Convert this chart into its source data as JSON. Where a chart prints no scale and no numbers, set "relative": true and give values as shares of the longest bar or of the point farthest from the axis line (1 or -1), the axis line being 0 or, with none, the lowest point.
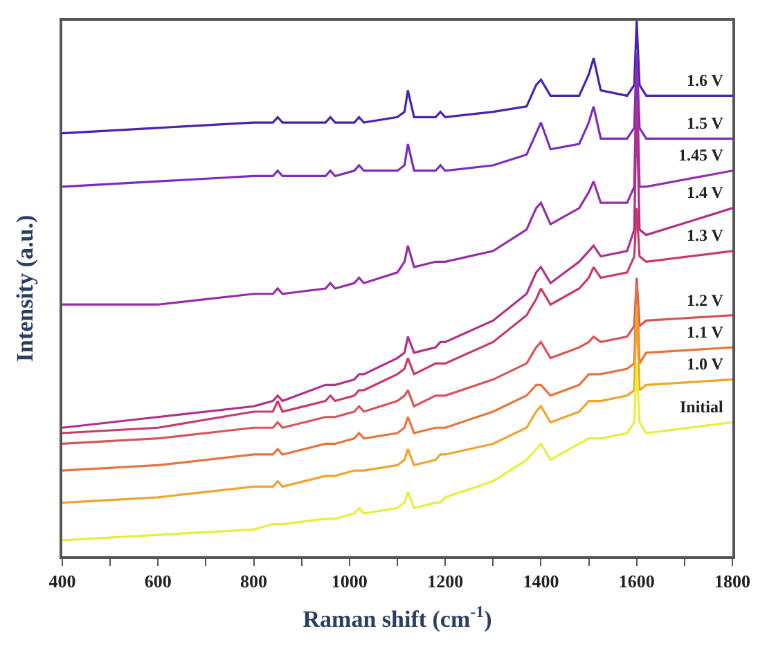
{
  "chart_data": {
    "type": "line",
    "relative": true,
    "xlabel": "Raman shift (cm$^{-1}$)",
    "ylabel": "Intensity (a.u.)",
    "xlim": [
      400,
      1800
    ],
    "xticks": [
      400,
      {
        "value": 500,
        "label": null
      },
      600,
      {
        "value": 700,
        "label": null
      },
      800,
      {
        "value": 900,
        "label": null
      },
      1000,
      {
        "value": 1100,
        "label": null
      },
      1200,
      {
        "value": 1300,
        "label": null
      },
      1400,
      {
        "value": 1500,
        "label": null
      },
      1600,
      {
        "value": 1700,
        "label": null
      },
      1800
    ],
    "legend": false,
    "marker": "none",
    "line_style": "solid",
    "x": [
      400,
      600,
      800,
      840,
      850,
      860,
      950,
      960,
      970,
      1010,
      1020,
      1030,
      1100,
      1115,
      1122,
      1135,
      1180,
      1190,
      1200,
      1300,
      1370,
      1390,
      1400,
      1420,
      1480,
      1500,
      1510,
      1525,
      1580,
      1595,
      1600,
      1606,
      1620,
      1800
    ],
    "series": [
      {
        "name": "1.6 V",
        "color": "#4a22b0",
        "values": [
          0.79,
          0.8,
          0.81,
          0.81,
          0.82,
          0.81,
          0.81,
          0.82,
          0.81,
          0.81,
          0.82,
          0.81,
          0.82,
          0.83,
          0.87,
          0.82,
          0.82,
          0.83,
          0.82,
          0.83,
          0.84,
          0.88,
          0.89,
          0.86,
          0.86,
          0.9,
          0.93,
          0.87,
          0.86,
          0.88,
          1.0,
          0.88,
          0.86,
          0.86
        ]
      },
      {
        "name": "1.5 V",
        "color": "#7a2cc0",
        "values": [
          0.69,
          0.7,
          0.71,
          0.71,
          0.72,
          0.71,
          0.71,
          0.72,
          0.71,
          0.72,
          0.73,
          0.72,
          0.72,
          0.73,
          0.77,
          0.72,
          0.72,
          0.73,
          0.72,
          0.73,
          0.75,
          0.79,
          0.81,
          0.76,
          0.77,
          0.81,
          0.84,
          0.78,
          0.78,
          0.8,
          0.94,
          0.8,
          0.78,
          0.78
        ]
      },
      {
        "name": "1.45 V",
        "color": "#962ca8",
        "values": [
          0.47,
          0.47,
          0.49,
          0.49,
          0.5,
          0.49,
          0.5,
          0.51,
          0.5,
          0.51,
          0.52,
          0.51,
          0.53,
          0.55,
          0.58,
          0.54,
          0.55,
          0.55,
          0.55,
          0.57,
          0.61,
          0.65,
          0.66,
          0.62,
          0.65,
          0.68,
          0.7,
          0.66,
          0.66,
          0.69,
          0.91,
          0.69,
          0.69,
          0.72
        ]
      },
      {
        "name": "1.4 V",
        "color": "#b0308a",
        "values": [
          0.24,
          0.26,
          0.28,
          0.29,
          0.3,
          0.29,
          0.32,
          0.32,
          0.32,
          0.33,
          0.34,
          0.34,
          0.37,
          0.38,
          0.41,
          0.38,
          0.39,
          0.4,
          0.4,
          0.44,
          0.49,
          0.53,
          0.54,
          0.51,
          0.55,
          0.57,
          0.58,
          0.56,
          0.57,
          0.61,
          0.85,
          0.61,
          0.6,
          0.65
        ]
      },
      {
        "name": "1.3 V",
        "color": "#c83a68",
        "values": [
          0.23,
          0.24,
          0.27,
          0.27,
          0.29,
          0.27,
          0.29,
          0.3,
          0.29,
          0.3,
          0.31,
          0.31,
          0.34,
          0.35,
          0.37,
          0.34,
          0.36,
          0.36,
          0.36,
          0.4,
          0.45,
          0.48,
          0.5,
          0.47,
          0.5,
          0.52,
          0.54,
          0.52,
          0.53,
          0.56,
          0.65,
          0.56,
          0.55,
          0.57
        ]
      },
      {
        "name": "1.2 V",
        "color": "#d85458",
        "values": [
          0.21,
          0.22,
          0.24,
          0.24,
          0.25,
          0.24,
          0.26,
          0.26,
          0.26,
          0.27,
          0.28,
          0.27,
          0.29,
          0.3,
          0.31,
          0.28,
          0.3,
          0.3,
          0.3,
          0.33,
          0.36,
          0.39,
          0.4,
          0.37,
          0.39,
          0.4,
          0.41,
          0.4,
          0.41,
          0.43,
          0.52,
          0.43,
          0.44,
          0.45
        ]
      },
      {
        "name": "1.1 V",
        "color": "#e8743c",
        "values": [
          0.16,
          0.17,
          0.19,
          0.19,
          0.2,
          0.19,
          0.21,
          0.21,
          0.21,
          0.22,
          0.23,
          0.22,
          0.23,
          0.24,
          0.26,
          0.23,
          0.24,
          0.24,
          0.24,
          0.27,
          0.3,
          0.32,
          0.32,
          0.3,
          0.32,
          0.34,
          0.34,
          0.34,
          0.35,
          0.36,
          0.51,
          0.36,
          0.38,
          0.39
        ]
      },
      {
        "name": "1.0 V",
        "color": "#f0a42c",
        "values": [
          0.1,
          0.11,
          0.13,
          0.13,
          0.14,
          0.13,
          0.15,
          0.15,
          0.15,
          0.16,
          0.16,
          0.16,
          0.17,
          0.18,
          0.2,
          0.17,
          0.18,
          0.19,
          0.19,
          0.21,
          0.24,
          0.27,
          0.28,
          0.25,
          0.27,
          0.29,
          0.29,
          0.29,
          0.3,
          0.31,
          0.47,
          0.31,
          0.32,
          0.33
        ]
      },
      {
        "name": "Initial",
        "color": "#e6f03a",
        "values": [
          0.03,
          0.04,
          0.05,
          0.06,
          0.06,
          0.06,
          0.07,
          0.07,
          0.07,
          0.08,
          0.09,
          0.08,
          0.09,
          0.1,
          0.12,
          0.09,
          0.1,
          0.1,
          0.11,
          0.14,
          0.18,
          0.2,
          0.21,
          0.18,
          0.21,
          0.22,
          0.22,
          0.22,
          0.23,
          0.25,
          0.36,
          0.25,
          0.23,
          0.25
        ]
      }
    ]
  }
}
